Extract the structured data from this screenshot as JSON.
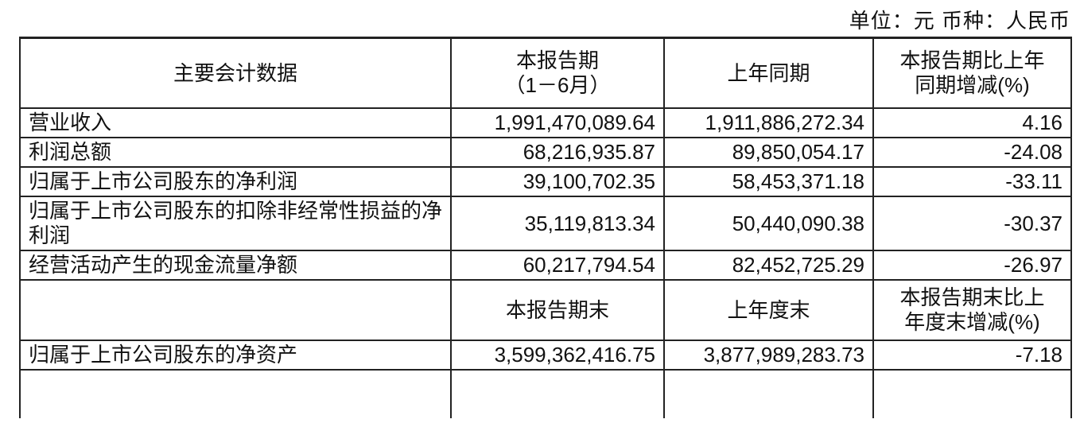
{
  "unit_line": "单位：元   币种：人民币",
  "headers": [
    "主要会计数据",
    "本报告期\n（1－6月）",
    "上年同期",
    "本报告期比上年\n同期增减(%)"
  ],
  "rows": [
    [
      "营业收入",
      "1,991,470,089.64",
      "1,911,886,272.34",
      "4.16"
    ],
    [
      "利润总额",
      "68,216,935.87",
      "89,850,054.17",
      "-24.08"
    ],
    [
      "归属于上市公司股东的净利润",
      "39,100,702.35",
      "58,453,371.18",
      "-33.11"
    ],
    [
      "归属于上市公司股东的扣除非经常性损益的净利润",
      "35,119,813.34",
      "50,440,090.38",
      "-30.37"
    ],
    [
      "经营活动产生的现金流量净额",
      "60,217,794.54",
      "82,452,725.29",
      "-26.97"
    ]
  ],
  "sub_headers": [
    "",
    "本报告期末",
    "上年度末",
    "本报告期末比上\n年度末增减(%)"
  ],
  "rows2": [
    [
      "归属于上市公司股东的净资产",
      "3,599,362,416.75",
      "3,877,989,283.73",
      "-7.18"
    ]
  ]
}
